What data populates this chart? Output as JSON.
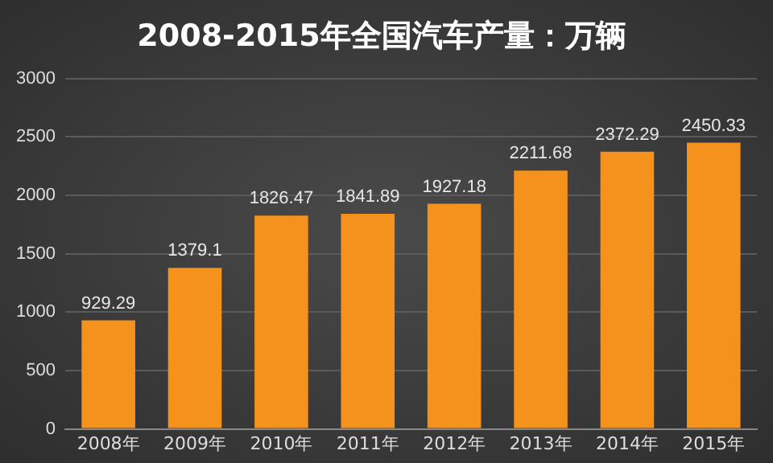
{
  "chart_data": {
    "type": "bar",
    "title": "2008-2015年全国汽车产量：万辆",
    "categories": [
      "2008年",
      "2009年",
      "2010年",
      "2011年",
      "2012年",
      "2013年",
      "2014年",
      "2015年"
    ],
    "values": [
      929.29,
      1379.1,
      1826.47,
      1841.89,
      1927.18,
      2211.68,
      2372.29,
      2450.33
    ],
    "color": "#f5921e",
    "ylim": [
      0,
      3000
    ],
    "yticks": [
      0,
      500,
      1000,
      1500,
      2000,
      2500,
      3000
    ],
    "grid": "y",
    "data_labels": true,
    "legend": false
  }
}
